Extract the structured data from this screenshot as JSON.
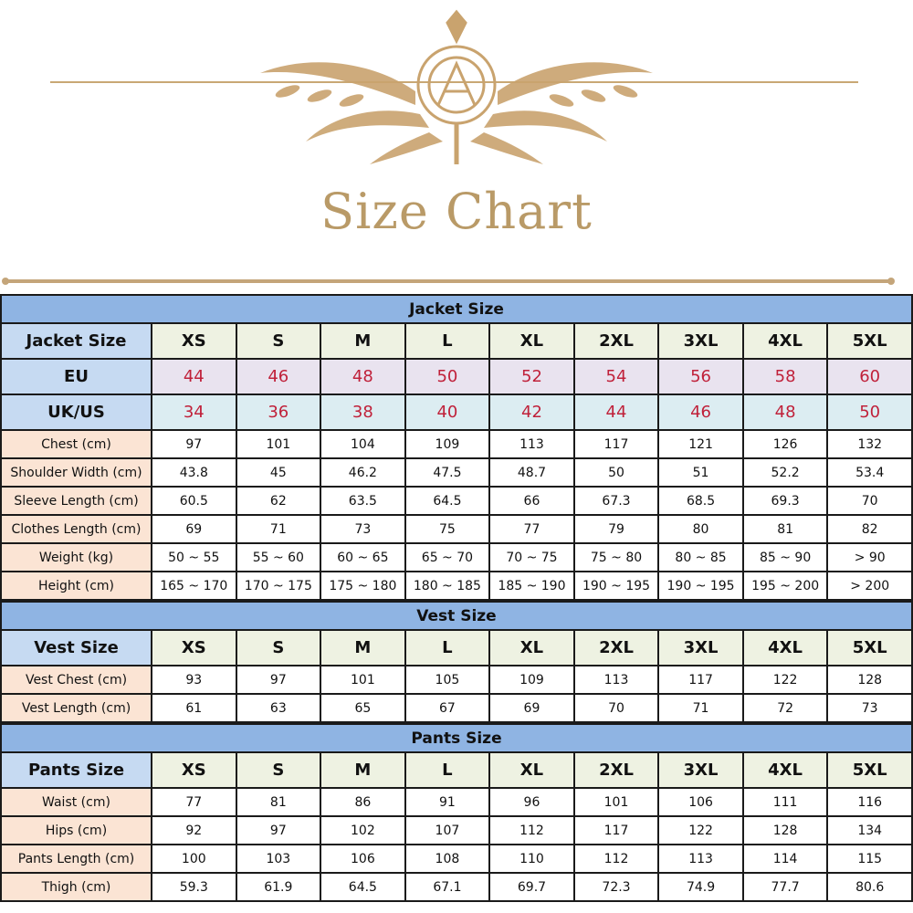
{
  "title": "Size Chart",
  "colors": {
    "gold": "#b99a67",
    "section_header": "#8fb4e3",
    "label_blue": "#c6daf2",
    "label_peach": "#fbe4d4",
    "size_red": "#c0213a"
  },
  "sizes": [
    "XS",
    "S",
    "M",
    "L",
    "XL",
    "2XL",
    "3XL",
    "4XL",
    "5XL"
  ],
  "jacket": {
    "section_title": "Jacket Size",
    "size_label": "Jacket Size",
    "eu": {
      "label": "EU",
      "values": [
        "44",
        "46",
        "48",
        "50",
        "52",
        "54",
        "56",
        "58",
        "60"
      ]
    },
    "ukus": {
      "label": "UK/US",
      "values": [
        "34",
        "36",
        "38",
        "40",
        "42",
        "44",
        "46",
        "48",
        "50"
      ]
    },
    "rows": [
      {
        "label": "Chest (cm)",
        "values": [
          "97",
          "101",
          "104",
          "109",
          "113",
          "117",
          "121",
          "126",
          "132"
        ]
      },
      {
        "label": "Shoulder Width (cm)",
        "values": [
          "43.8",
          "45",
          "46.2",
          "47.5",
          "48.7",
          "50",
          "51",
          "52.2",
          "53.4"
        ]
      },
      {
        "label": "Sleeve Length (cm)",
        "values": [
          "60.5",
          "62",
          "63.5",
          "64.5",
          "66",
          "67.3",
          "68.5",
          "69.3",
          "70"
        ]
      },
      {
        "label": "Clothes Length (cm)",
        "values": [
          "69",
          "71",
          "73",
          "75",
          "77",
          "79",
          "80",
          "81",
          "82"
        ]
      },
      {
        "label": "Weight (kg)",
        "values": [
          "50 ~ 55",
          "55 ~ 60",
          "60 ~ 65",
          "65 ~ 70",
          "70 ~ 75",
          "75 ~ 80",
          "80 ~ 85",
          "85 ~ 90",
          "> 90"
        ]
      },
      {
        "label": "Height (cm)",
        "values": [
          "165 ~ 170",
          "170 ~ 175",
          "175 ~ 180",
          "180 ~ 185",
          "185 ~ 190",
          "190 ~ 195",
          "190 ~ 195",
          "195 ~ 200",
          "> 200"
        ]
      }
    ]
  },
  "vest": {
    "section_title": "Vest Size",
    "size_label": "Vest Size",
    "rows": [
      {
        "label": "Vest Chest (cm)",
        "values": [
          "93",
          "97",
          "101",
          "105",
          "109",
          "113",
          "117",
          "122",
          "128"
        ]
      },
      {
        "label": "Vest Length (cm)",
        "values": [
          "61",
          "63",
          "65",
          "67",
          "69",
          "70",
          "71",
          "72",
          "73"
        ]
      }
    ]
  },
  "pants": {
    "section_title": "Pants Size",
    "size_label": "Pants Size",
    "rows": [
      {
        "label": "Waist (cm)",
        "values": [
          "77",
          "81",
          "86",
          "91",
          "96",
          "101",
          "106",
          "111",
          "116"
        ]
      },
      {
        "label": "Hips (cm)",
        "values": [
          "92",
          "97",
          "102",
          "107",
          "112",
          "117",
          "122",
          "128",
          "134"
        ]
      },
      {
        "label": "Pants Length (cm)",
        "values": [
          "100",
          "103",
          "106",
          "108",
          "110",
          "112",
          "113",
          "114",
          "115"
        ]
      },
      {
        "label": "Thigh (cm)",
        "values": [
          "59.3",
          "61.9",
          "64.5",
          "67.1",
          "69.7",
          "72.3",
          "74.9",
          "77.7",
          "80.6"
        ]
      }
    ]
  }
}
